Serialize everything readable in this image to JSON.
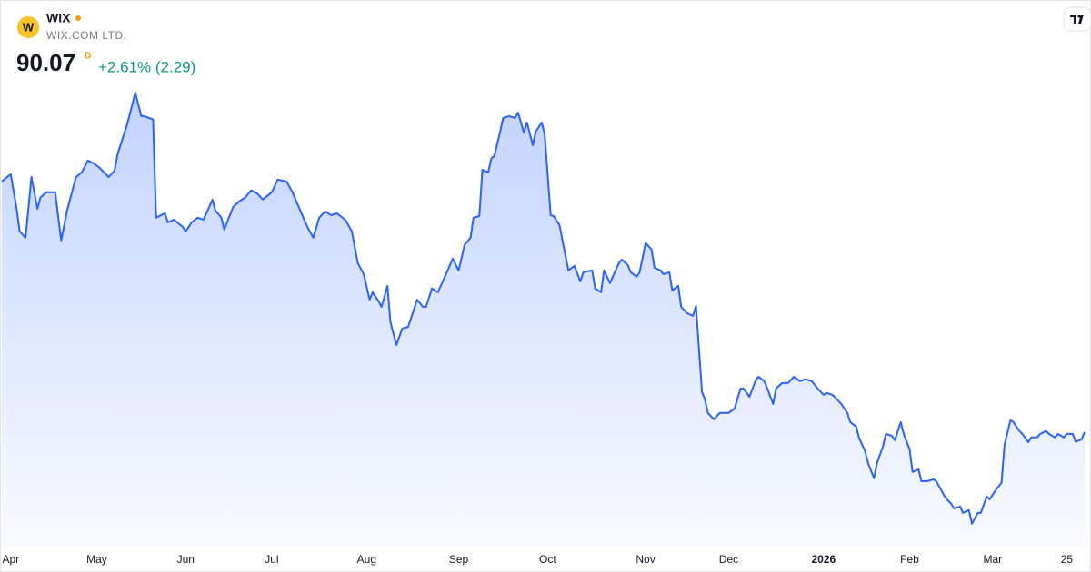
{
  "header": {
    "symbol": "WIX",
    "company": "WIX.COM LTD.",
    "price": 90.07,
    "interval": "D",
    "change": "+2.61% (2.29)"
  },
  "chart_data": {
    "type": "area",
    "color": "#2962ff",
    "x": [
      0,
      3,
      5,
      6,
      8,
      10,
      12,
      13,
      15,
      18,
      20,
      22,
      25,
      27,
      29,
      31,
      33,
      36,
      38,
      39,
      42,
      43,
      45,
      47,
      48,
      51,
      52,
      55,
      56,
      58,
      61,
      62,
      64,
      66,
      68,
      71,
      72,
      74,
      75,
      78,
      80,
      82,
      84,
      86,
      88,
      91,
      93,
      96,
      98,
      101,
      103,
      105,
      107,
      109,
      111,
      113,
      116,
      118,
      120,
      122,
      124,
      125,
      127,
      128,
      130,
      131,
      133,
      135,
      137,
      139,
      140,
      142,
      143,
      145,
      147,
      150,
      152,
      154,
      156,
      158,
      159,
      161,
      162,
      164,
      165,
      166,
      168,
      169,
      171,
      173,
      174,
      176,
      177,
      179,
      180,
      182,
      183,
      185,
      186,
      188,
      189,
      191,
      193,
      195,
      196,
      199,
      200,
      202,
      203,
      205,
      208,
      209,
      211,
      212,
      214,
      215,
      217,
      219,
      220,
      222,
      223,
      225,
      226,
      228,
      229,
      231,
      233,
      234,
      236,
      237,
      238,
      240,
      242,
      245,
      247,
      249,
      250,
      252,
      254,
      255,
      257,
      258,
      260,
      261,
      263,
      265,
      267,
      269,
      271,
      273,
      275,
      277,
      278,
      280,
      281,
      283,
      285,
      286,
      288,
      289,
      291,
      292,
      294,
      295,
      297,
      298,
      300,
      301,
      303,
      304,
      306,
      307,
      309,
      310,
      312,
      314,
      315,
      317,
      318,
      320,
      321,
      323,
      324,
      326,
      327,
      329,
      330,
      332,
      333,
      335,
      337,
      338,
      340,
      341,
      343,
      344,
      346,
      347,
      349,
      350,
      352,
      353,
      355,
      356,
      358,
      359,
      361,
      362,
      364,
      365
    ],
    "values": [
      169.0,
      171.3,
      160.4,
      153.3,
      151.3,
      170.4,
      160.4,
      163.9,
      165.6,
      165.6,
      150.4,
      159.9,
      170.4,
      171.9,
      175.6,
      174.7,
      173.3,
      170.4,
      172.4,
      177.6,
      186.2,
      189.6,
      197.0,
      189.6,
      189.6,
      188.5,
      157.6,
      159.0,
      156.1,
      157.0,
      154.7,
      153.3,
      156.1,
      157.6,
      157.0,
      163.3,
      159.9,
      157.6,
      153.9,
      161.0,
      162.7,
      163.9,
      166.2,
      165.3,
      163.3,
      165.6,
      169.6,
      169.0,
      165.6,
      159.0,
      154.7,
      151.3,
      157.6,
      159.6,
      158.4,
      159.0,
      156.7,
      153.3,
      143.3,
      139.8,
      131.8,
      134.1,
      131.3,
      129.5,
      136.1,
      124.7,
      117.5,
      122.7,
      123.2,
      129.0,
      131.8,
      129.5,
      129.5,
      135.3,
      134.1,
      140.4,
      144.7,
      141.0,
      149.0,
      151.3,
      157.6,
      158.1,
      172.7,
      171.9,
      176.2,
      177.0,
      184.7,
      189.0,
      189.6,
      189.0,
      190.7,
      184.4,
      187.6,
      180.4,
      184.7,
      187.6,
      183.9,
      158.4,
      158.1,
      155.3,
      150.4,
      141.0,
      142.4,
      137.5,
      140.4,
      141.0,
      135.3,
      134.1,
      141.0,
      137.0,
      143.3,
      144.4,
      142.7,
      140.4,
      139.0,
      140.4,
      149.6,
      147.6,
      141.8,
      141.0,
      139.8,
      140.4,
      134.7,
      136.1,
      129.5,
      127.5,
      126.7,
      129.8,
      102.7,
      100.4,
      96.1,
      94.1,
      96.1,
      96.1,
      97.5,
      103.8,
      103.8,
      101.2,
      106.1,
      107.5,
      106.1,
      103.8,
      98.9,
      103.8,
      105.5,
      105.5,
      107.5,
      106.1,
      106.7,
      106.1,
      103.8,
      101.8,
      102.4,
      101.8,
      100.9,
      98.9,
      96.1,
      93.2,
      91.8,
      88.1,
      84.1,
      80.3,
      75.5,
      80.3,
      85.5,
      89.5,
      88.9,
      87.5,
      93.2,
      89.5,
      84.6,
      77.5,
      78.3,
      74.6,
      74.6,
      75.2,
      74.6,
      71.2,
      69.5,
      67.5,
      66.0,
      66.6,
      64.6,
      65.5,
      61.2,
      64.6,
      64.6,
      69.8,
      68.9,
      71.8,
      74.1,
      86.1,
      93.8,
      93.2,
      90.4,
      89.5,
      86.9,
      88.4,
      88.4,
      89.5,
      90.4,
      89.5,
      88.4,
      89.5,
      88.4,
      89.5,
      89.5,
      87.0,
      87.78,
      90.07
    ],
    "xlim": [
      0,
      365
    ],
    "ylim": [
      54,
      199
    ],
    "xticks": [
      {
        "value": 3,
        "label": "Apr"
      },
      {
        "value": 32,
        "label": "May"
      },
      {
        "value": 62,
        "label": "Jun"
      },
      {
        "value": 91,
        "label": "Jul"
      },
      {
        "value": 123,
        "label": "Aug"
      },
      {
        "value": 154,
        "label": "Sep"
      },
      {
        "value": 184,
        "label": "Oct"
      },
      {
        "value": 217,
        "label": "Nov"
      },
      {
        "value": 245,
        "label": "Dec"
      },
      {
        "value": 277,
        "label": "2026"
      },
      {
        "value": 306,
        "label": "Feb"
      },
      {
        "value": 334,
        "label": "Mar"
      },
      {
        "value": 359,
        "label": "25"
      }
    ]
  }
}
